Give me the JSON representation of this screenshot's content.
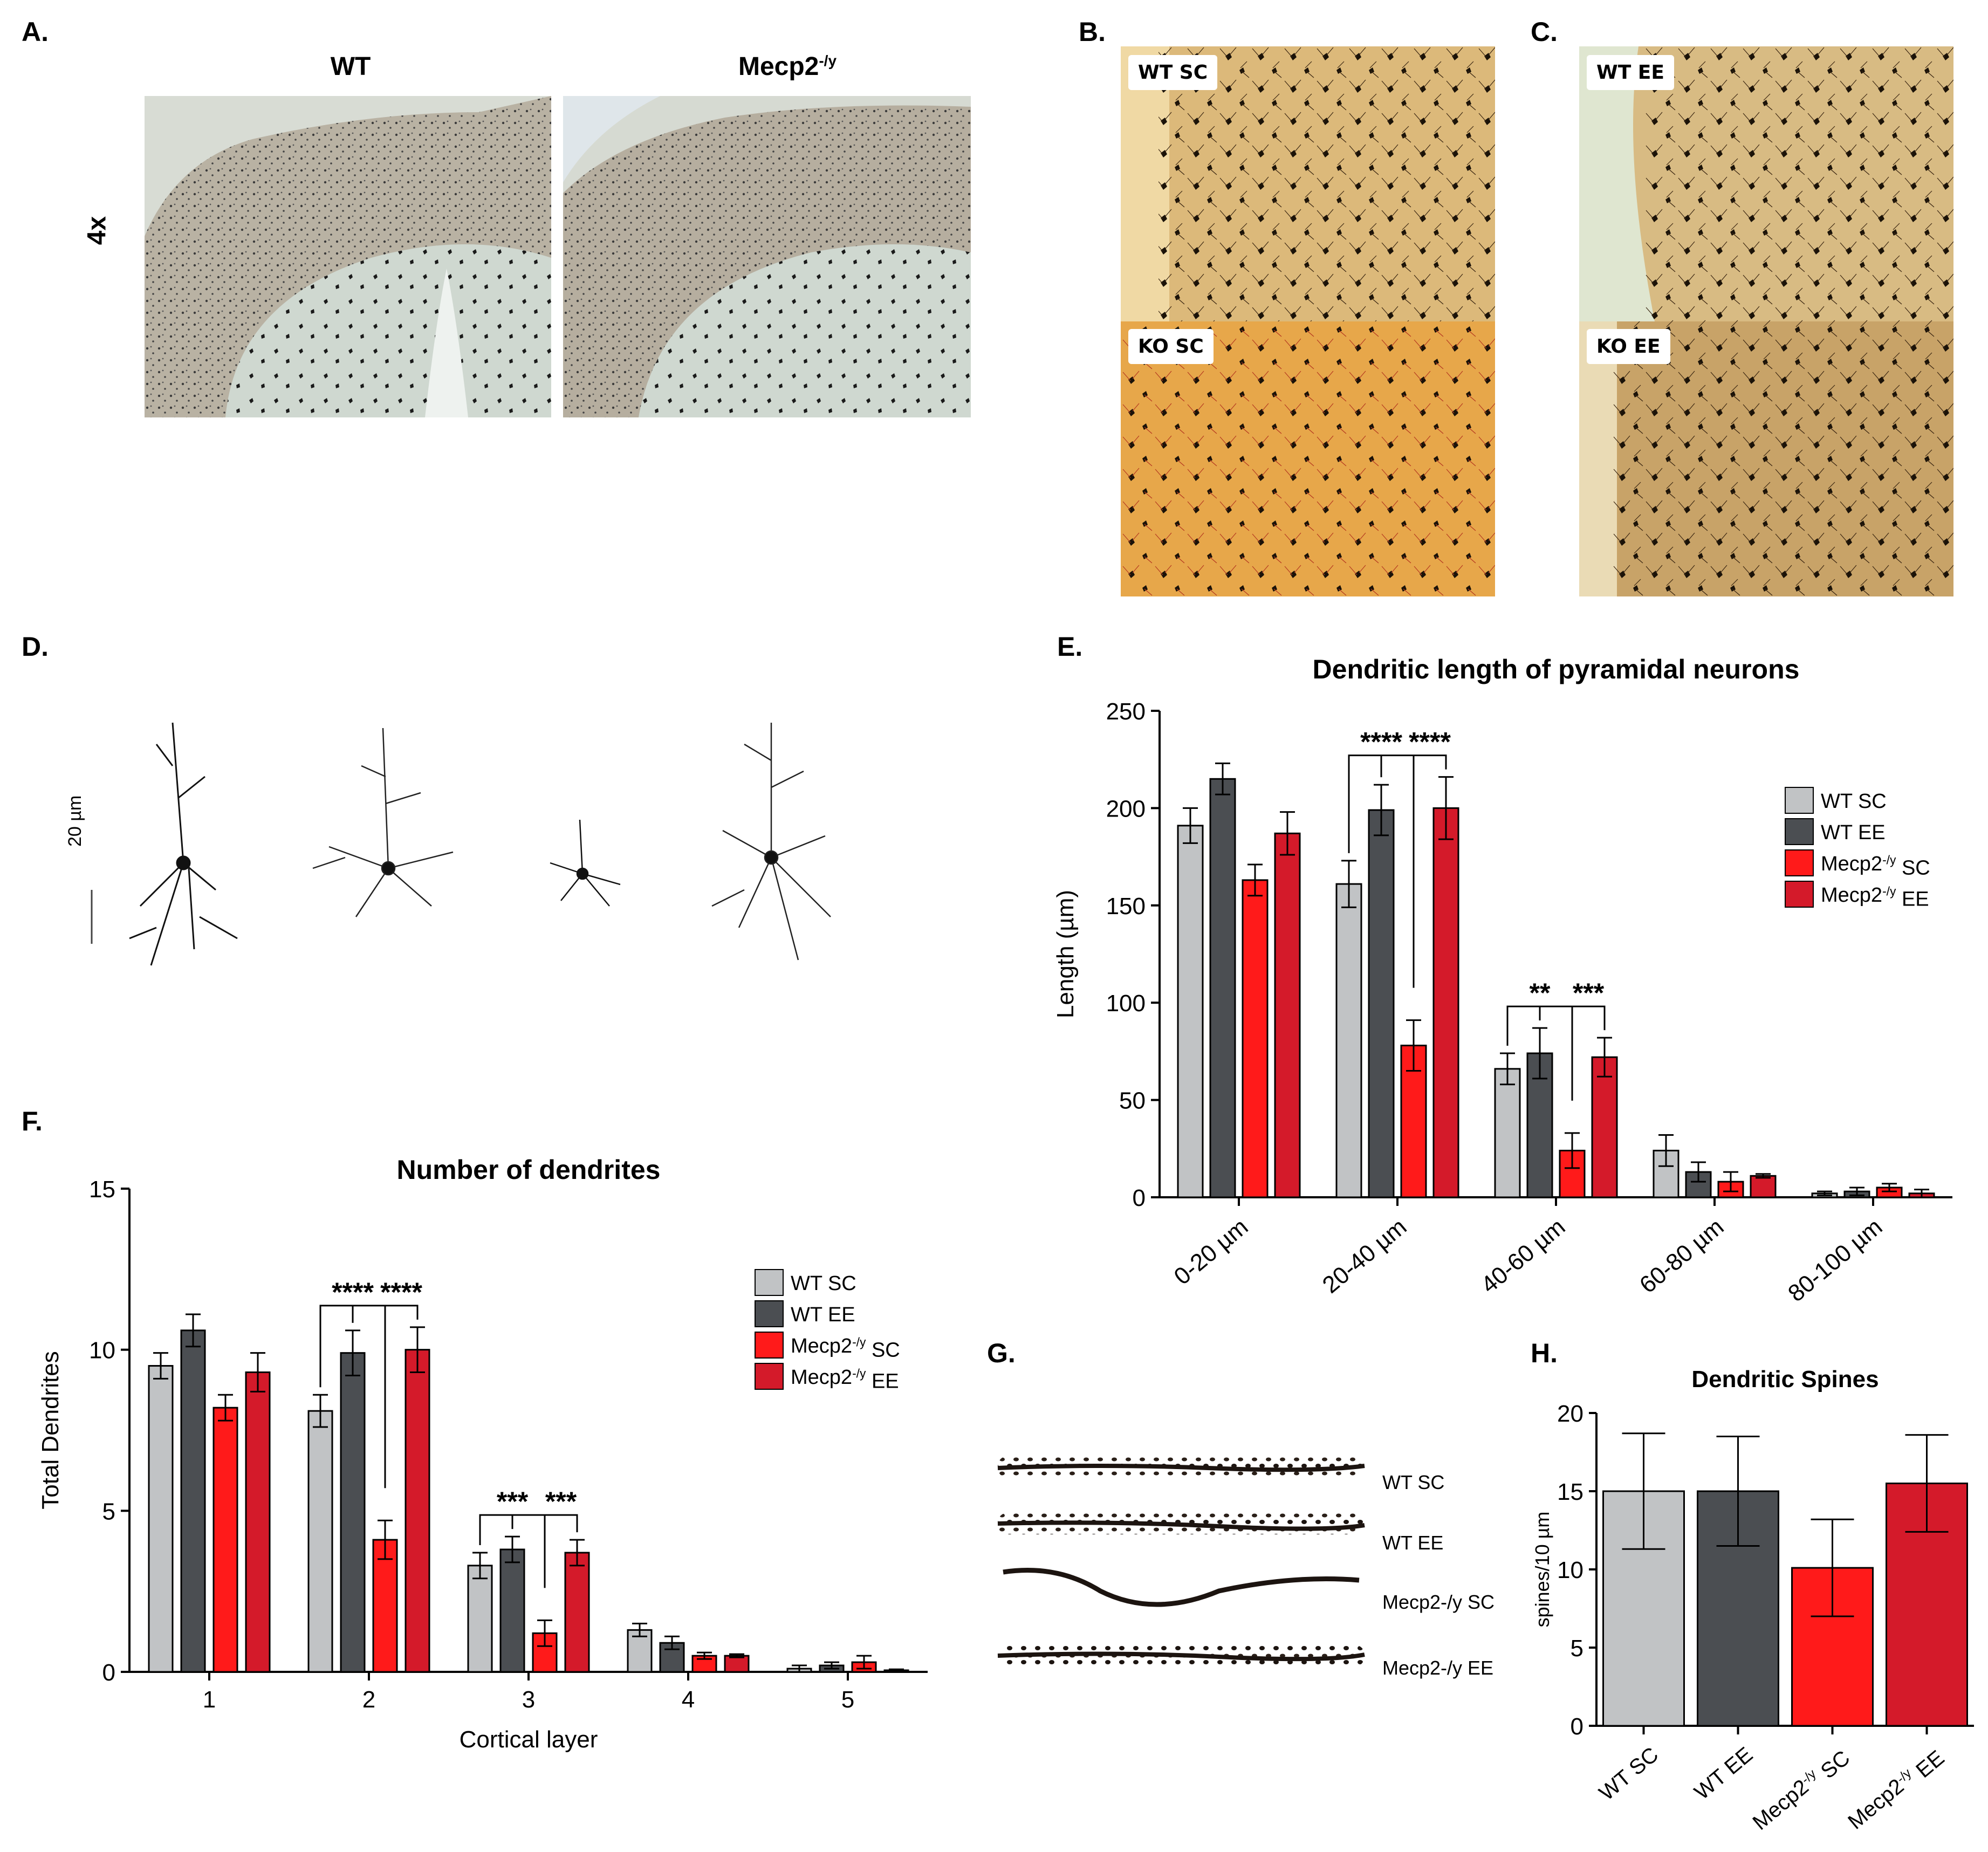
{
  "panels": {
    "a": {
      "letter": "A.",
      "magnification": "4x",
      "wt_label": "WT",
      "ko_label_base": "Mecp2",
      "ko_label_sup": "-/y"
    },
    "b": {
      "letter": "B.",
      "top_tag": "WT SC",
      "bottom_tag": "KO SC"
    },
    "c": {
      "letter": "C.",
      "top_tag": "WT EE",
      "bottom_tag": "KO EE"
    },
    "d": {
      "letter": "D.",
      "scale_label": "20 µm"
    },
    "e": {
      "letter": "E."
    },
    "f": {
      "letter": "F."
    },
    "g": {
      "letter": "G.",
      "labels": [
        "WT SC",
        "WT EE",
        "Mecp2-/y SC",
        "Mecp2-/y EE"
      ]
    },
    "h": {
      "letter": "H."
    }
  },
  "legend": {
    "items": [
      {
        "base": "WT SC",
        "sup": ""
      },
      {
        "base": "WT EE",
        "sup": ""
      },
      {
        "base": "Mecp2",
        "sup": "-/y",
        "suffix": " SC"
      },
      {
        "base": "Mecp2",
        "sup": "-/y",
        "suffix": " EE"
      }
    ]
  },
  "colors": {
    "wt_sc": "#c1c3c5",
    "wt_ee": "#4b4e52",
    "ko_sc": "#ff1a1a",
    "ko_ee": "#d41a2a"
  },
  "chart_data": [
    {
      "id": "E",
      "type": "bar",
      "title": "Dendritic length of pyramidal neurons",
      "xlabel": "",
      "ylabel": "Length (µm)",
      "ylim": [
        0,
        250
      ],
      "yticks": [
        0,
        50,
        100,
        150,
        200,
        250
      ],
      "categories": [
        "0-20 µm",
        "20-40 µm",
        "40-60 µm",
        "60-80 µm",
        "80-100 µm"
      ],
      "series": [
        {
          "name": "WT SC",
          "values": [
            191,
            161,
            66,
            24,
            2
          ],
          "errors": [
            9,
            12,
            8,
            8,
            1
          ]
        },
        {
          "name": "WT EE",
          "values": [
            215,
            199,
            74,
            13,
            3
          ],
          "errors": [
            8,
            13,
            13,
            5,
            2
          ]
        },
        {
          "name": "Mecp2-/y SC",
          "values": [
            163,
            78,
            24,
            8,
            5
          ],
          "errors": [
            8,
            13,
            9,
            5,
            2
          ]
        },
        {
          "name": "Mecp2-/y EE",
          "values": [
            187,
            200,
            72,
            11,
            2
          ],
          "errors": [
            11,
            16,
            10,
            1,
            2
          ]
        }
      ],
      "significance": [
        {
          "label": "****",
          "category": 1,
          "from": 0,
          "to": 2
        },
        {
          "label": "****",
          "category": 1,
          "from": 2,
          "to": 3
        },
        {
          "label": "**",
          "category": 2,
          "from": 0,
          "to": 2
        },
        {
          "label": "***",
          "category": 2,
          "from": 2,
          "to": 3
        }
      ],
      "legend_position": "right"
    },
    {
      "id": "F",
      "type": "bar",
      "title": "Number of dendrites",
      "xlabel": "Cortical layer",
      "ylabel": "Total Dendrites",
      "ylim": [
        0,
        15
      ],
      "yticks": [
        0,
        5,
        10,
        15
      ],
      "categories": [
        "1",
        "2",
        "3",
        "4",
        "5"
      ],
      "series": [
        {
          "name": "WT SC",
          "values": [
            9.5,
            8.1,
            3.3,
            1.3,
            0.1
          ],
          "errors": [
            0.4,
            0.5,
            0.4,
            0.2,
            0.1
          ]
        },
        {
          "name": "WT EE",
          "values": [
            10.6,
            9.9,
            3.8,
            0.9,
            0.2
          ],
          "errors": [
            0.5,
            0.7,
            0.4,
            0.2,
            0.1
          ]
        },
        {
          "name": "Mecp2-/y SC",
          "values": [
            8.2,
            4.1,
            1.2,
            0.5,
            0.3
          ],
          "errors": [
            0.4,
            0.6,
            0.4,
            0.1,
            0.2
          ]
        },
        {
          "name": "Mecp2-/y EE",
          "values": [
            9.3,
            10.0,
            3.7,
            0.5,
            0.05
          ],
          "errors": [
            0.6,
            0.7,
            0.4,
            0.05,
            0.03
          ]
        }
      ],
      "significance": [
        {
          "label": "****",
          "category": 1,
          "from": 0,
          "to": 2
        },
        {
          "label": "****",
          "category": 1,
          "from": 2,
          "to": 3
        },
        {
          "label": "***",
          "category": 2,
          "from": 0,
          "to": 2
        },
        {
          "label": "***",
          "category": 2,
          "from": 2,
          "to": 3
        }
      ],
      "legend_position": "right"
    },
    {
      "id": "H",
      "type": "bar",
      "title": "Dendritic Spines",
      "xlabel": "",
      "ylabel": "spines/10 µm",
      "ylim": [
        0,
        20
      ],
      "yticks": [
        0,
        5,
        10,
        15,
        20
      ],
      "categories": [
        "WT SC",
        "WT EE",
        "Mecp2-/y SC",
        "Mecp2-/y EE"
      ],
      "values": [
        15.0,
        15.0,
        10.1,
        15.5
      ],
      "errors": [
        3.7,
        3.5,
        3.1,
        3.1
      ]
    }
  ]
}
